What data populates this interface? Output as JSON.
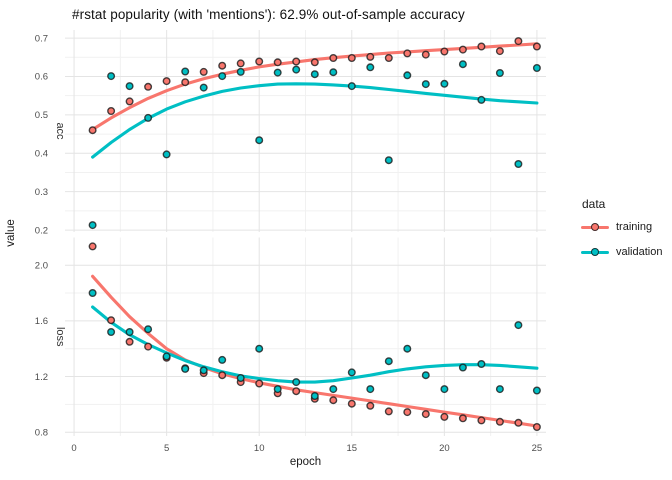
{
  "title": "#rstat popularity (with 'mentions'): 62.9% out-of-sample accuracy",
  "legend": {
    "title": "data",
    "entries": [
      {
        "label": "training",
        "color": "#F8766D"
      },
      {
        "label": "validation",
        "color": "#00BFC4"
      }
    ]
  },
  "palette": {
    "training": "#F8766D",
    "validation": "#00BFC4",
    "point_stroke": "rgba(25,25,25,0.8)",
    "grid_major": "#E4E4E4",
    "grid_minor": "#F1F1F1",
    "tick_label": "#4D4D4D",
    "strip_label": "#333333",
    "axis_title": "#1A1A1A"
  },
  "chart_data": {
    "type": "scatter",
    "title": "#rstat popularity (with 'mentions'): 62.9% out-of-sample accuracy",
    "xlabel": "epoch",
    "ylabel": "value",
    "legend_title": "data",
    "legend_position": "right",
    "grid": true,
    "x": [
      1,
      2,
      3,
      4,
      5,
      6,
      7,
      8,
      9,
      10,
      11,
      12,
      13,
      14,
      15,
      16,
      17,
      18,
      19,
      20,
      21,
      22,
      23,
      24,
      25
    ],
    "x_axis": {
      "ticks": [
        0,
        5,
        10,
        15,
        20,
        25
      ],
      "minor_ticks": [
        2.5,
        7.5,
        12.5,
        17.5,
        22.5
      ],
      "lim": [
        -0.49,
        25.49
      ]
    },
    "facets": [
      {
        "name": "acc",
        "ylim": [
          0.195,
          0.721
        ],
        "y_ticks": [
          0.2,
          0.3,
          0.4,
          0.5,
          0.6,
          0.7
        ],
        "y_minor": [
          0.25,
          0.35,
          0.45,
          0.55,
          0.65
        ],
        "series": [
          {
            "name": "training",
            "points": [
              0.46,
              0.51,
              0.535,
              0.573,
              0.588,
              0.585,
              0.612,
              0.628,
              0.634,
              0.639,
              0.637,
              0.639,
              0.637,
              0.648,
              0.648,
              0.651,
              0.648,
              0.66,
              0.657,
              0.665,
              0.67,
              0.678,
              0.666,
              0.692,
              0.678
            ],
            "smooth": [
              0.462,
              0.492,
              0.519,
              0.543,
              0.563,
              0.58,
              0.594,
              0.606,
              0.616,
              0.625,
              0.632,
              0.638,
              0.644,
              0.649,
              0.653,
              0.657,
              0.661,
              0.664,
              0.667,
              0.67,
              0.673,
              0.676,
              0.679,
              0.682,
              0.685
            ]
          },
          {
            "name": "validation",
            "points": [
              0.213,
              0.601,
              0.575,
              0.492,
              0.397,
              0.613,
              0.571,
              0.601,
              0.612,
              0.434,
              0.61,
              0.618,
              0.606,
              0.611,
              0.575,
              0.624,
              0.382,
              0.603,
              0.58,
              0.581,
              0.632,
              0.539,
              0.609,
              0.372,
              0.622
            ],
            "smooth": [
              0.39,
              0.428,
              0.462,
              0.491,
              0.515,
              0.534,
              0.549,
              0.561,
              0.57,
              0.576,
              0.58,
              0.581,
              0.58,
              0.578,
              0.575,
              0.571,
              0.566,
              0.561,
              0.556,
              0.551,
              0.546,
              0.541,
              0.537,
              0.534,
              0.531
            ]
          }
        ]
      },
      {
        "name": "loss",
        "ylim": [
          0.773,
          2.199
        ],
        "y_ticks": [
          0.8,
          1.2,
          1.6,
          2.0
        ],
        "y_minor": [
          1.0,
          1.4,
          1.8
        ],
        "series": [
          {
            "name": "training",
            "points": [
              2.135,
              1.605,
              1.45,
              1.415,
              1.335,
              1.26,
              1.225,
              1.21,
              1.16,
              1.15,
              1.08,
              1.095,
              1.04,
              1.03,
              1.005,
              0.99,
              0.95,
              0.945,
              0.93,
              0.91,
              0.9,
              0.885,
              0.875,
              0.868,
              0.838
            ],
            "smooth": [
              1.92,
              1.77,
              1.63,
              1.51,
              1.4,
              1.32,
              1.265,
              1.22,
              1.185,
              1.155,
              1.13,
              1.105,
              1.085,
              1.065,
              1.045,
              1.025,
              1.005,
              0.985,
              0.965,
              0.945,
              0.925,
              0.905,
              0.885,
              0.865,
              0.845
            ]
          },
          {
            "name": "validation",
            "points": [
              1.8,
              1.52,
              1.52,
              1.54,
              1.345,
              1.255,
              1.245,
              1.32,
              1.19,
              1.4,
              1.11,
              1.16,
              1.06,
              1.11,
              1.23,
              1.11,
              1.31,
              1.4,
              1.21,
              1.11,
              1.265,
              1.29,
              1.11,
              1.57,
              1.1
            ],
            "smooth": [
              1.7,
              1.59,
              1.5,
              1.43,
              1.37,
              1.315,
              1.27,
              1.235,
              1.205,
              1.185,
              1.17,
              1.16,
              1.16,
              1.17,
              1.19,
              1.21,
              1.235,
              1.255,
              1.27,
              1.28,
              1.285,
              1.285,
              1.28,
              1.27,
              1.26
            ]
          }
        ]
      }
    ]
  }
}
